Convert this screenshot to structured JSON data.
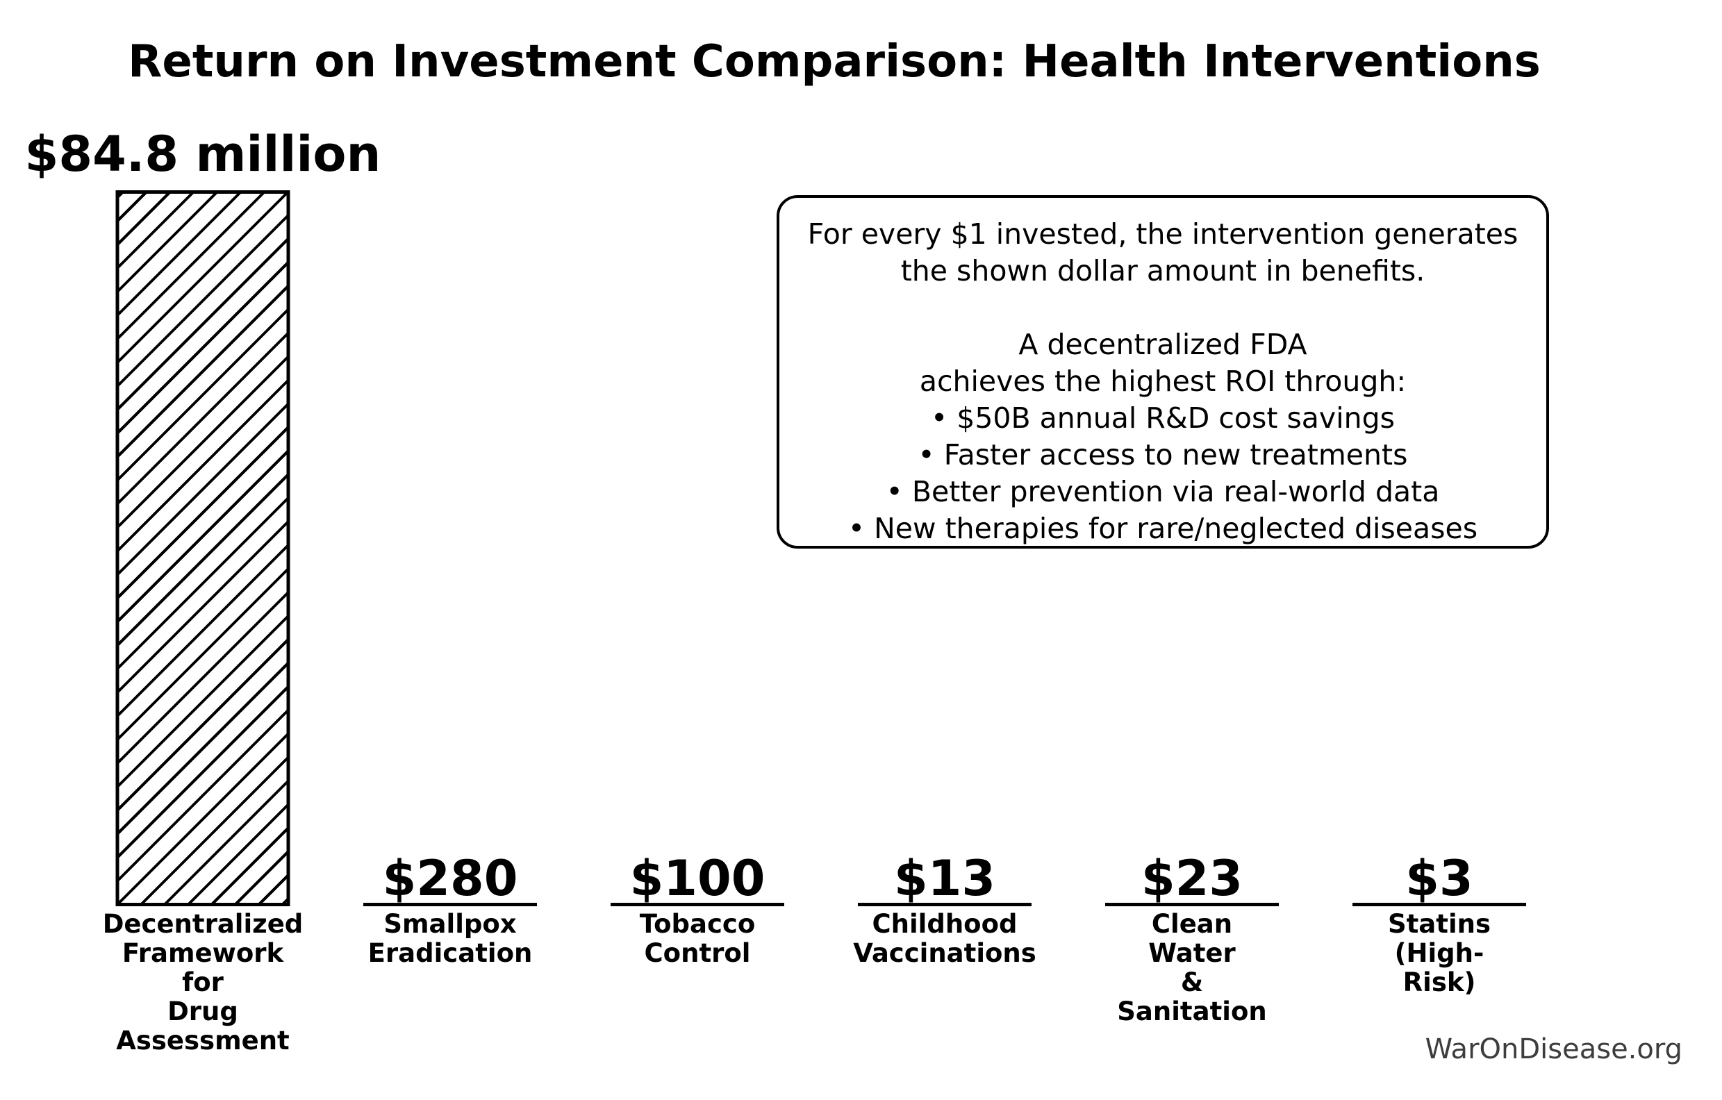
{
  "chart_data": {
    "type": "bar",
    "title": "Return on Investment Comparison: Health Interventions",
    "categories": [
      "Decentralized Framework for Drug Assessment",
      "Smallpox Eradication",
      "Tobacco Control",
      "Childhood Vaccinations",
      "Clean Water & Sanitation",
      "Statins (High-Risk)"
    ],
    "category_display": [
      "Decentralized\nFramework\nfor\nDrug\nAssessment",
      "Smallpox\nEradication",
      "Tobacco\nControl",
      "Childhood\nVaccinations",
      "Clean\nWater\n&\nSanitation",
      "Statins\n(High-Risk)"
    ],
    "values": [
      84800000,
      280,
      100,
      13,
      23,
      3
    ],
    "value_labels": [
      "$84.8 million",
      "$280",
      "$100",
      "$13",
      "$23",
      "$3"
    ],
    "xlabel": "",
    "ylabel": "",
    "axes_visible": false,
    "grid": false,
    "legend": "none",
    "bar_style": {
      "fill": "#ffffff",
      "edge_color": "#000000",
      "hatch": "/"
    },
    "colors": {
      "text": "#000000",
      "background": "#ffffff",
      "watermark": "#3d3d3d"
    },
    "annotation_lines": [
      "For every $1 invested, the intervention generates",
      "the shown dollar amount in benefits.",
      "",
      "A decentralized FDA",
      "achieves the highest ROI through:",
      "• $50B annual R&D cost savings",
      "• Faster access to new treatments",
      "• Better prevention via real-world data",
      "• New therapies for rare/neglected diseases"
    ],
    "watermark": "WarOnDisease.org"
  }
}
